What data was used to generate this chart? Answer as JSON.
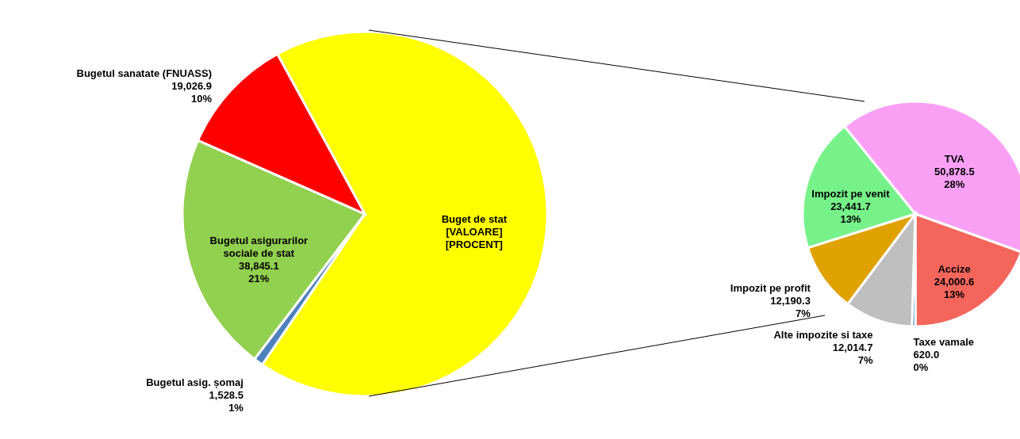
{
  "chart_data": [
    {
      "type": "pie",
      "categories": [
        "Buget de stat",
        "Bugetul asig. șomaj",
        "Bugetul asigurarilor sociale de stat",
        "Bugetul sanatate (FNUASS)"
      ],
      "values": [
        123145.8,
        1528.5,
        38845.1,
        19026.9
      ],
      "colors": [
        "#ffff00",
        "#4f81bd",
        "#92d050",
        "#ff0000"
      ],
      "value_labels": [
        "[VALOARE]\n[PROCENT]",
        "1,528.5\n1%",
        "38,845.1\n21%",
        "19,026.9\n10%"
      ]
    },
    {
      "type": "pie",
      "categories": [
        "TVA",
        "Accize",
        "Taxe vamale",
        "Alte impozite si taxe",
        "Impozit pe profit",
        "Impozit pe venit"
      ],
      "values": [
        50878.5,
        24000.6,
        620.0,
        12014.7,
        12190.3,
        23441.7
      ],
      "colors": [
        "#f9a0f5",
        "#f4665c",
        "#4f81bd",
        "#bfbfbf",
        "#e0a200",
        "#77f28a"
      ],
      "value_labels": [
        "50,878.5\n28%",
        "24,000.6\n13%",
        "620.0\n0%",
        "12,014.7\n7%",
        "12,190.3\n7%",
        "23,441.7\n13%"
      ]
    }
  ]
}
